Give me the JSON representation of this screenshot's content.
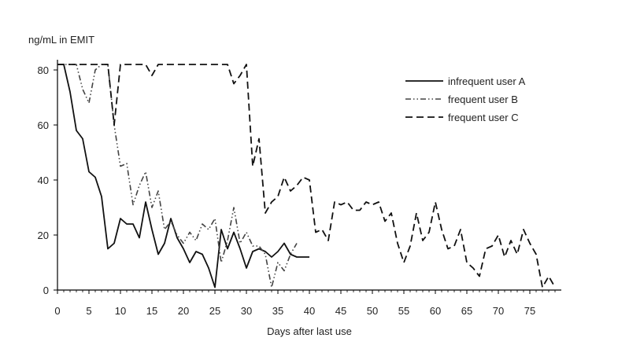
{
  "chart_data": {
    "type": "line",
    "title": "",
    "ylabel": "ng/mL in EMIT",
    "xlabel": "Days after last use",
    "xlim": [
      0,
      80
    ],
    "ylim": [
      0,
      82
    ],
    "xticks": [
      0,
      5,
      10,
      15,
      20,
      25,
      30,
      35,
      40,
      45,
      50,
      55,
      60,
      65,
      70,
      75
    ],
    "yticks": [
      0,
      20,
      40,
      60,
      80
    ],
    "grid": false,
    "legend_position": "top-right",
    "series": [
      {
        "name": "infrequent user A",
        "style": "solid",
        "x": [
          0,
          1,
          2,
          3,
          4,
          5,
          6,
          7,
          8,
          9,
          10,
          11,
          12,
          13,
          14,
          15,
          16,
          17,
          18,
          19,
          20,
          21,
          22,
          23,
          24,
          25,
          26,
          27,
          28,
          29,
          30,
          31,
          32,
          33,
          34,
          35,
          36,
          37,
          38,
          39,
          40
        ],
        "y": [
          82,
          82,
          72,
          58,
          55,
          43,
          41,
          34,
          15,
          17,
          26,
          24,
          24,
          19,
          32,
          22,
          13,
          17,
          26,
          19,
          15,
          10,
          14,
          13,
          8,
          1,
          22,
          15,
          21,
          15,
          8,
          14,
          15,
          14,
          12,
          14,
          17,
          13,
          12,
          12,
          12
        ]
      },
      {
        "name": "frequent user B",
        "style": "dash-dot-dot",
        "x": [
          0,
          1,
          2,
          3,
          4,
          5,
          6,
          7,
          8,
          9,
          10,
          11,
          12,
          13,
          14,
          15,
          16,
          17,
          18,
          19,
          20,
          21,
          22,
          23,
          24,
          25,
          26,
          27,
          28,
          29,
          30,
          31,
          32,
          33,
          34,
          35,
          36,
          37,
          38
        ],
        "y": [
          82,
          82,
          82,
          82,
          73,
          68,
          80,
          82,
          82,
          60,
          45,
          46,
          31,
          38,
          43,
          30,
          36,
          22,
          25,
          20,
          17,
          21,
          18,
          24,
          22,
          26,
          10,
          18,
          30,
          17,
          21,
          16,
          16,
          13,
          1,
          10,
          7,
          13,
          17
        ]
      },
      {
        "name": "frequent user C",
        "style": "dashed",
        "x": [
          0,
          1,
          2,
          3,
          4,
          5,
          6,
          7,
          8,
          9,
          10,
          11,
          12,
          13,
          14,
          15,
          16,
          17,
          18,
          19,
          20,
          21,
          22,
          23,
          24,
          25,
          26,
          27,
          28,
          29,
          30,
          31,
          32,
          33,
          34,
          35,
          36,
          37,
          38,
          39,
          40,
          41,
          42,
          43,
          44,
          45,
          46,
          47,
          48,
          49,
          50,
          51,
          52,
          53,
          54,
          55,
          56,
          57,
          58,
          59,
          60,
          61,
          62,
          63,
          64,
          65,
          66,
          67,
          68,
          69,
          70,
          71,
          72,
          73,
          74,
          75,
          76,
          77,
          78,
          79
        ],
        "y": [
          82,
          82,
          82,
          82,
          82,
          82,
          82,
          82,
          82,
          60,
          82,
          82,
          82,
          82,
          82,
          78,
          82,
          82,
          82,
          82,
          82,
          82,
          82,
          82,
          82,
          82,
          82,
          82,
          75,
          78,
          82,
          45,
          55,
          28,
          32,
          34,
          41,
          36,
          38,
          41,
          40,
          21,
          22,
          18,
          32,
          31,
          32,
          29,
          29,
          32,
          31,
          32,
          25,
          28,
          17,
          10,
          16,
          28,
          18,
          21,
          32,
          22,
          15,
          16,
          22,
          10,
          8,
          5,
          15,
          16,
          20,
          12,
          18,
          13,
          22,
          17,
          13,
          1,
          5,
          1
        ]
      }
    ]
  }
}
